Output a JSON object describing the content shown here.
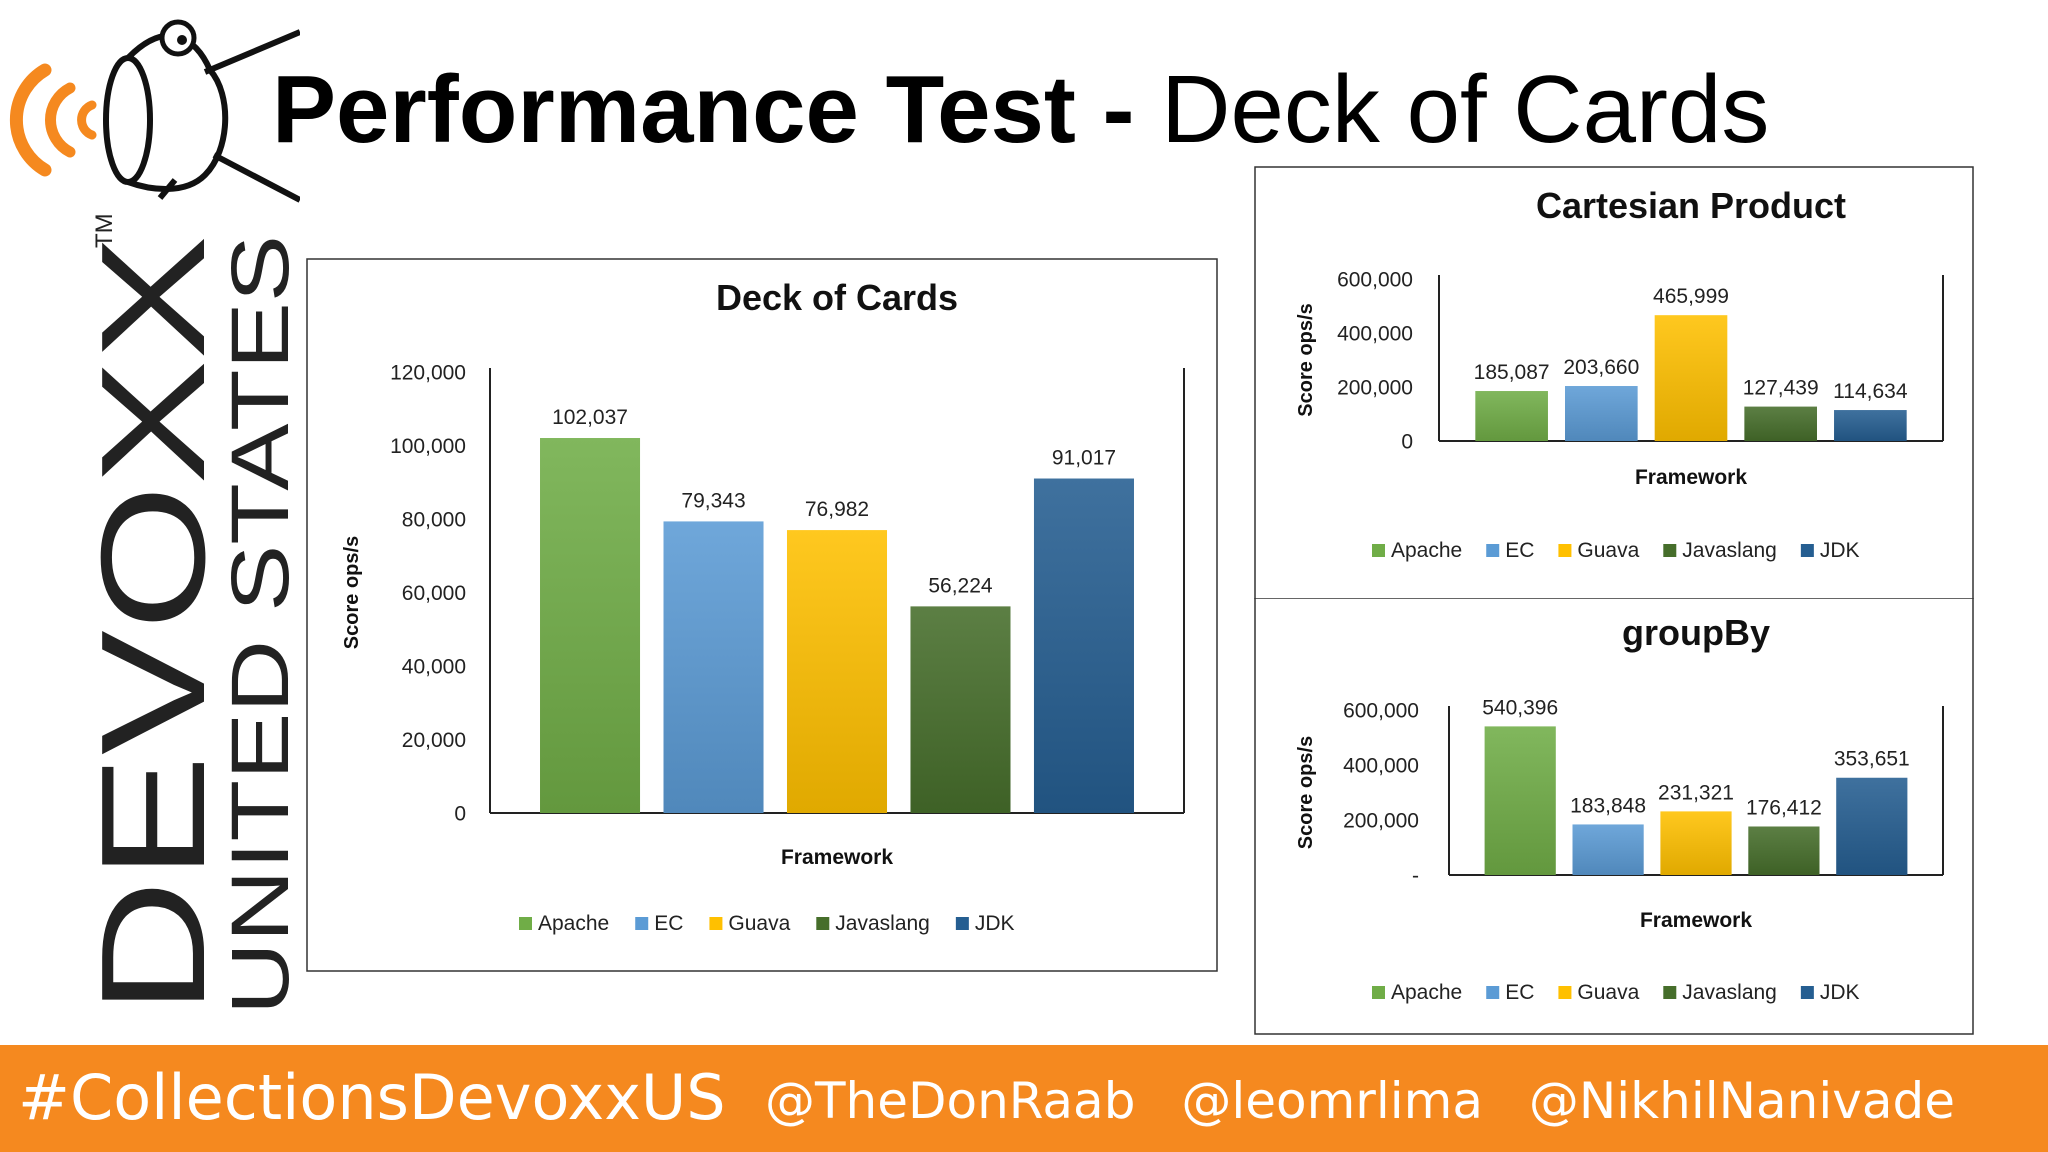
{
  "slide": {
    "title_bold": "Performance Test -",
    "title_light": "Deck of Cards"
  },
  "logo": {
    "brand": "DEVOXX",
    "region": "UNITED STATES",
    "trademark": "TM",
    "icon": "devoxx-mascot-icon",
    "accent_color": "#f5891f"
  },
  "footer": {
    "hashtag": "#CollectionsDevoxxUS",
    "handles": [
      "@TheDonRaab",
      "@leomrlima",
      "@NikhilNanivade"
    ],
    "background_color": "#f5891f"
  },
  "series_colors": {
    "Apache": "#70ad47",
    "EC": "#5b9bd5",
    "Guava": "#ffc000",
    "Javaslang": "#466e2b",
    "JDK": "#255e91"
  },
  "chart_data": [
    {
      "id": "main",
      "type": "bar",
      "title": "Deck of Cards",
      "xlabel": "Framework",
      "ylabel": "Score ops/s",
      "categories": [
        "Apache",
        "EC",
        "Guava",
        "Javaslang",
        "JDK"
      ],
      "values": [
        102037,
        79343,
        76982,
        56224,
        91017
      ],
      "value_labels": [
        "102,037",
        "79,343",
        "76,982",
        "56,224",
        "91,017"
      ],
      "ylim": [
        0,
        120000
      ],
      "ticks": [
        0,
        20000,
        40000,
        60000,
        80000,
        100000,
        120000
      ],
      "tick_labels": [
        "0",
        "20,000",
        "40,000",
        "60,000",
        "80,000",
        "100,000",
        "120,000"
      ],
      "legend": [
        "Apache",
        "EC",
        "Guava",
        "Javaslang",
        "JDK"
      ],
      "legend_position": "bottom",
      "grid": false
    },
    {
      "id": "cartesian",
      "type": "bar",
      "title": "Cartesian Product",
      "xlabel": "Framework",
      "ylabel": "Score ops/s",
      "categories": [
        "Apache",
        "EC",
        "Guava",
        "Javaslang",
        "JDK"
      ],
      "values": [
        185087,
        203660,
        465999,
        127439,
        114634
      ],
      "value_labels": [
        "185,087",
        "203,660",
        "465,999",
        "127,439",
        "114,634"
      ],
      "ylim": [
        0,
        600000
      ],
      "ticks": [
        0,
        200000,
        400000,
        600000
      ],
      "tick_labels": [
        "0",
        "200,000",
        "400,000",
        "600,000"
      ],
      "legend": [
        "Apache",
        "EC",
        "Guava",
        "Javaslang",
        "JDK"
      ],
      "legend_position": "bottom",
      "grid": false
    },
    {
      "id": "groupby",
      "type": "bar",
      "title": "groupBy",
      "xlabel": "Framework",
      "ylabel": "Score ops/s",
      "categories": [
        "Apache",
        "EC",
        "Guava",
        "Javaslang",
        "JDK"
      ],
      "values": [
        540396,
        183848,
        231321,
        176412,
        353651
      ],
      "value_labels": [
        "540,396",
        "183,848",
        "231,321",
        "176,412",
        "353,651"
      ],
      "ylim": [
        0,
        600000
      ],
      "ticks": [
        0,
        200000,
        400000,
        600000
      ],
      "tick_labels": [
        "-",
        "200,000",
        "400,000",
        "600,000"
      ],
      "legend": [
        "Apache",
        "EC",
        "Guava",
        "Javaslang",
        "JDK"
      ],
      "legend_position": "bottom",
      "grid": false
    }
  ]
}
